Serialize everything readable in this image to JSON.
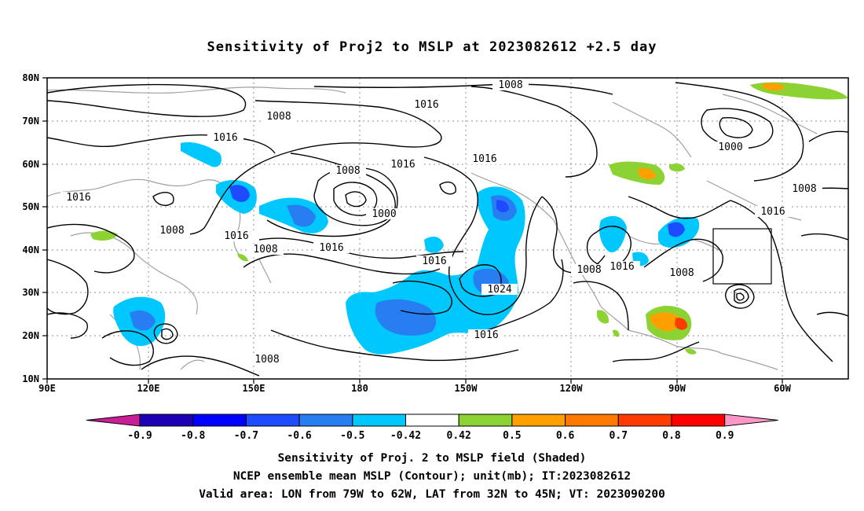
{
  "title": "Sensitivity of Proj2 to MSLP at 2023082612 +2.5 day",
  "footer": {
    "line1": "Sensitivity of Proj. 2 to MSLP field (Shaded)",
    "line2": "NCEP ensemble mean MSLP (Contour); unit(mb); IT:2023082612",
    "line3": "Valid area: LON from 79W to 62W, LAT from 32N to 45N; VT: 2023090200"
  },
  "map": {
    "lon_ticks": [
      "90E",
      "120E",
      "150E",
      "180",
      "150W",
      "120W",
      "90W",
      "60W"
    ],
    "lat_ticks": [
      "80N",
      "70N",
      "60N",
      "50N",
      "40N",
      "30N",
      "20N",
      "10N"
    ],
    "contour_labels": [
      "1008",
      "1016",
      "1008",
      "1016",
      "1016",
      "1008",
      "1016",
      "1016",
      "1008",
      "1000",
      "1016",
      "1008",
      "1016",
      "1000",
      "1008",
      "1016",
      "1016",
      "1024",
      "1016",
      "1008",
      "1016",
      "1008",
      "1008",
      "1016",
      "1000"
    ],
    "valid_box": {
      "lon_w": -79,
      "lon_e": -62,
      "lat_s": 32,
      "lat_n": 45
    }
  },
  "colorbar": {
    "labels": [
      "-0.9",
      "-0.8",
      "-0.7",
      "-0.6",
      "-0.5",
      "-0.42",
      "0.42",
      "0.5",
      "0.6",
      "0.7",
      "0.8",
      "0.9"
    ],
    "colors": [
      "#1e00b4",
      "#0000ff",
      "#1e4bff",
      "#287df0",
      "#00c8ff",
      "#ffffff",
      "#8cd232",
      "#ffa000",
      "#ff7800",
      "#ff3c00",
      "#ff0000"
    ],
    "neg_end_color": "#c81e96",
    "pos_end_color": "#ff96c8"
  }
}
